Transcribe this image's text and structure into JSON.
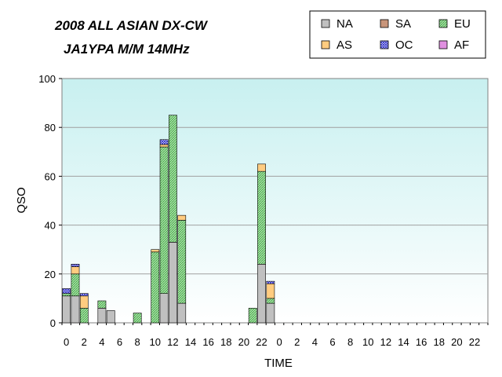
{
  "chart_data": {
    "type": "bar",
    "stacked": true,
    "title": "2008 ALL ASIAN DX-CW",
    "subtitle": "JA1YPA M/M   14MHz",
    "xlabel": "TIME",
    "ylabel": "QSO",
    "ylim": [
      0,
      100
    ],
    "yticks": [
      0,
      20,
      40,
      60,
      80,
      100
    ],
    "grid": true,
    "legend_position": "top-right",
    "categories": [
      "0",
      "1",
      "2",
      "3",
      "4",
      "5",
      "6",
      "7",
      "8",
      "9",
      "10",
      "11",
      "12",
      "13",
      "14",
      "15",
      "16",
      "17",
      "18",
      "19",
      "20",
      "21",
      "22",
      "23",
      "0",
      "1",
      "2",
      "3",
      "4",
      "5",
      "6",
      "7",
      "8",
      "9",
      "10",
      "11",
      "12",
      "13",
      "14",
      "15",
      "16",
      "17",
      "18",
      "19",
      "20",
      "21",
      "22",
      "23"
    ],
    "x_tick_labels": [
      "0",
      "",
      "2",
      "",
      "4",
      "",
      "6",
      "",
      "8",
      "",
      "10",
      "",
      "12",
      "",
      "14",
      "",
      "16",
      "",
      "18",
      "",
      "20",
      "",
      "22",
      "",
      "0",
      "",
      "2",
      "",
      "4",
      "",
      "6",
      "",
      "8",
      "",
      "10",
      "",
      "12",
      "",
      "14",
      "",
      "16",
      "",
      "18",
      "",
      "20",
      "",
      "22",
      ""
    ],
    "series": [
      {
        "name": "NA",
        "color": "#c0c0c0",
        "pattern": "none",
        "values": [
          11,
          11,
          0,
          0,
          6,
          5,
          0,
          0,
          0,
          0,
          0,
          12,
          33,
          8,
          0,
          0,
          0,
          0,
          0,
          0,
          0,
          0,
          24,
          8,
          0,
          0,
          0,
          0,
          0,
          0,
          0,
          0,
          0,
          0,
          0,
          0,
          0,
          0,
          0,
          0,
          0,
          0,
          0,
          0,
          0,
          0,
          0,
          0
        ]
      },
      {
        "name": "SA",
        "color": "#c8957a",
        "pattern": "none",
        "values": [
          0,
          0,
          0,
          0,
          0,
          0,
          0,
          0,
          0,
          0,
          0,
          0,
          0,
          0,
          0,
          0,
          0,
          0,
          0,
          0,
          0,
          0,
          0,
          0,
          0,
          0,
          0,
          0,
          0,
          0,
          0,
          0,
          0,
          0,
          0,
          0,
          0,
          0,
          0,
          0,
          0,
          0,
          0,
          0,
          0,
          0,
          0,
          0
        ]
      },
      {
        "name": "EU",
        "color": "#8fd68f",
        "pattern": "diag",
        "values": [
          1,
          9,
          6,
          0,
          3,
          0,
          0,
          0,
          4,
          0,
          29,
          60,
          52,
          34,
          0,
          0,
          0,
          0,
          0,
          0,
          0,
          6,
          38,
          2,
          0,
          0,
          0,
          0,
          0,
          0,
          0,
          0,
          0,
          0,
          0,
          0,
          0,
          0,
          0,
          0,
          0,
          0,
          0,
          0,
          0,
          0,
          0,
          0
        ]
      },
      {
        "name": "AS",
        "color": "#ffcc80",
        "pattern": "none",
        "values": [
          0,
          3,
          5,
          0,
          0,
          0,
          0,
          0,
          0,
          0,
          1,
          1,
          0,
          2,
          0,
          0,
          0,
          0,
          0,
          0,
          0,
          0,
          3,
          6,
          0,
          0,
          0,
          0,
          0,
          0,
          0,
          0,
          0,
          0,
          0,
          0,
          0,
          0,
          0,
          0,
          0,
          0,
          0,
          0,
          0,
          0,
          0,
          0
        ]
      },
      {
        "name": "OC",
        "color": "#3c3cd2",
        "pattern": "cross",
        "values": [
          2,
          1,
          1,
          0,
          0,
          0,
          0,
          0,
          0,
          0,
          0,
          2,
          0,
          0,
          0,
          0,
          0,
          0,
          0,
          0,
          0,
          0,
          0,
          1,
          0,
          0,
          0,
          0,
          0,
          0,
          0,
          0,
          0,
          0,
          0,
          0,
          0,
          0,
          0,
          0,
          0,
          0,
          0,
          0,
          0,
          0,
          0,
          0
        ]
      },
      {
        "name": "AF",
        "color": "#e090e0",
        "pattern": "none",
        "values": [
          0,
          0,
          0,
          0,
          0,
          0,
          0,
          0,
          0,
          0,
          0,
          0,
          0,
          0,
          0,
          0,
          0,
          0,
          0,
          0,
          0,
          0,
          0,
          0,
          0,
          0,
          0,
          0,
          0,
          0,
          0,
          0,
          0,
          0,
          0,
          0,
          0,
          0,
          0,
          0,
          0,
          0,
          0,
          0,
          0,
          0,
          0,
          0
        ]
      }
    ]
  }
}
